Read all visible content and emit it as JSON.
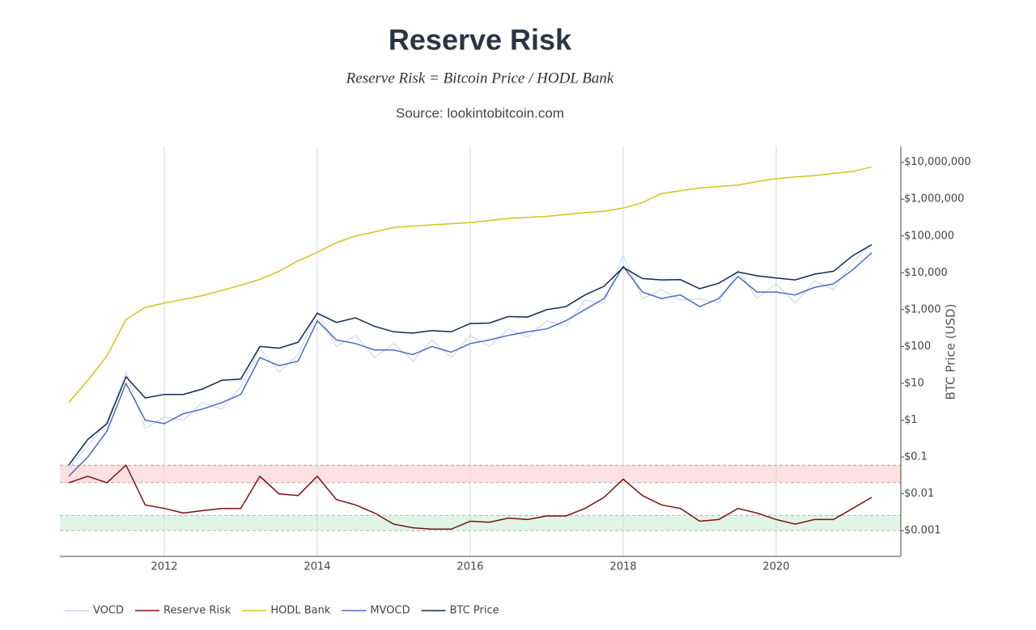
{
  "chart_data": {
    "type": "line",
    "title": "Reserve Risk",
    "subtitle": "Reserve Risk = Bitcoin Price / HODL Bank",
    "source": "Source: lookintobitcoin.com",
    "y_label": "BTC Price (USD)",
    "log_y": true,
    "grid_x": true,
    "legend": "bottom",
    "xlim": [
      2010.635,
      2021.63
    ],
    "xticks": [
      2012,
      2014,
      2016,
      2018,
      2020
    ],
    "ylim": [
      0.0002,
      27000000
    ],
    "yticks": [
      {
        "value": 0.001,
        "label": "$0.001"
      },
      {
        "value": 0.01,
        "label": "$0.01"
      },
      {
        "value": 0.1,
        "label": "$0.1"
      },
      {
        "value": 1,
        "label": "$1"
      },
      {
        "value": 10,
        "label": "$10"
      },
      {
        "value": 100,
        "label": "$100"
      },
      {
        "value": 1000,
        "label": "$1,000"
      },
      {
        "value": 10000,
        "label": "$10,000"
      },
      {
        "value": 100000,
        "label": "$100,000"
      },
      {
        "value": 1000000,
        "label": "$1,000,000"
      },
      {
        "value": 10000000,
        "label": "$10,000,000"
      }
    ],
    "bands": [
      {
        "range": [
          0.02,
          0.06
        ],
        "color": "#fde0e0"
      },
      {
        "range": [
          0.001,
          0.0026
        ],
        "color": "#e0f5e6"
      }
    ],
    "x": [
      2010.75,
      2011.0,
      2011.25,
      2011.5,
      2011.75,
      2012.0,
      2012.25,
      2012.5,
      2012.75,
      2013.0,
      2013.25,
      2013.5,
      2013.75,
      2014.0,
      2014.25,
      2014.5,
      2014.75,
      2015.0,
      2015.25,
      2015.5,
      2015.75,
      2016.0,
      2016.25,
      2016.5,
      2016.75,
      2017.0,
      2017.25,
      2017.5,
      2017.75,
      2018.0,
      2018.25,
      2018.5,
      2018.75,
      2019.0,
      2019.25,
      2019.5,
      2019.75,
      2020.0,
      2020.25,
      2020.5,
      2020.75,
      2021.0,
      2021.25
    ],
    "series": [
      {
        "name": "VOCD",
        "color": "#c9d0f2",
        "values": [
          0.05,
          0.2,
          0.9,
          20,
          0.6,
          1.2,
          1,
          3,
          2,
          8,
          90,
          20,
          60,
          900,
          100,
          200,
          50,
          120,
          40,
          150,
          50,
          200,
          100,
          300,
          180,
          500,
          350,
          1800,
          1500,
          30000,
          2000,
          3500,
          1800,
          2000,
          1500,
          12000,
          2000,
          5000,
          1500,
          6000,
          3500,
          20000,
          60000
        ]
      },
      {
        "name": "Reserve Risk",
        "color": "#7a1212",
        "values": [
          0.02,
          0.03,
          0.02,
          0.06,
          0.005,
          0.004,
          0.003,
          0.0035,
          0.004,
          0.004,
          0.03,
          0.01,
          0.009,
          0.03,
          0.007,
          0.005,
          0.003,
          0.0015,
          0.0012,
          0.0011,
          0.0011,
          0.0018,
          0.0017,
          0.0022,
          0.002,
          0.0025,
          0.0025,
          0.004,
          0.008,
          0.025,
          0.009,
          0.005,
          0.004,
          0.0018,
          0.002,
          0.004,
          0.003,
          0.002,
          0.0015,
          0.002,
          0.002,
          0.004,
          0.008
        ]
      },
      {
        "name": "HODL Bank",
        "color": "#d4c41a",
        "values": [
          3,
          12,
          55,
          540,
          1150,
          1500,
          1900,
          2400,
          3300,
          4600,
          6600,
          11000,
          21000,
          36000,
          66000,
          100000,
          130000,
          170000,
          185000,
          200000,
          215000,
          230000,
          260000,
          300000,
          320000,
          340000,
          380000,
          430000,
          470000,
          570000,
          800000,
          1400000,
          1700000,
          2000000,
          2200000,
          2400000,
          3000000,
          3600000,
          4000000,
          4300000,
          5000000,
          5600000,
          7500000
        ]
      },
      {
        "name": "MVOCD",
        "color": "#4a6bc4",
        "values": [
          0.03,
          0.1,
          0.5,
          10,
          1,
          0.8,
          1.5,
          2,
          3,
          5,
          50,
          30,
          40,
          500,
          150,
          120,
          80,
          80,
          60,
          100,
          70,
          120,
          150,
          200,
          250,
          300,
          500,
          1000,
          2000,
          15000,
          3000,
          2000,
          2500,
          1200,
          2000,
          8000,
          3000,
          3000,
          2500,
          4000,
          5000,
          12000,
          35000
        ]
      },
      {
        "name": "BTC Price",
        "color": "#0d2b52",
        "values": [
          0.06,
          0.3,
          0.8,
          15,
          4,
          5,
          5,
          7,
          12,
          13,
          100,
          90,
          130,
          800,
          450,
          600,
          350,
          250,
          230,
          270,
          250,
          420,
          430,
          650,
          630,
          1000,
          1200,
          2500,
          4300,
          14000,
          7000,
          6400,
          6500,
          3700,
          5200,
          10500,
          8300,
          7200,
          6400,
          9200,
          11000,
          29000,
          58000
        ]
      }
    ]
  }
}
